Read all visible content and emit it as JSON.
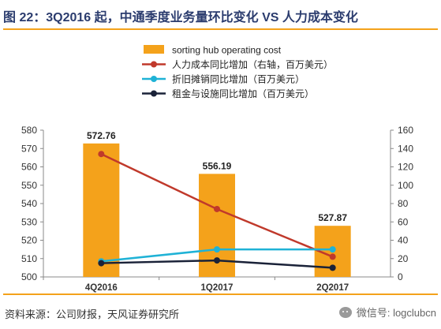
{
  "title": "图 22：3Q2016 起，中通季度业务量环比变化 VS 人力成本变化",
  "source": "资料来源：公司财报，天风证券研究所",
  "watermark": "微信号: logclubcn",
  "colors": {
    "bar": "#f4a21b",
    "labor": "#c0392b",
    "depreciation": "#1fb2d6",
    "rent": "#1a2238",
    "accent_rule": "#f4a21b",
    "title": "#2b3c6e"
  },
  "chart_data": {
    "type": "bar",
    "categories": [
      "4Q2016",
      "1Q2017",
      "2Q2017"
    ],
    "left_axis": {
      "min": 500,
      "max": 580,
      "step": 10
    },
    "right_axis": {
      "min": 0,
      "max": 160,
      "step": 20
    },
    "series": [
      {
        "name": "sorting hub operating cost",
        "kind": "bar",
        "axis": "left",
        "color": "#f4a21b",
        "values": [
          572.76,
          556.19,
          527.87
        ],
        "labels": [
          "572.76",
          "556.19",
          "527.87"
        ]
      },
      {
        "name": "人力成本同比增加（右轴，百万美元）",
        "kind": "line",
        "axis": "right",
        "color": "#c0392b",
        "values": [
          134,
          74,
          22
        ]
      },
      {
        "name": "折旧摊销同比增加（百万美元）",
        "kind": "line",
        "axis": "right",
        "color": "#1fb2d6",
        "values": [
          17,
          30,
          30
        ]
      },
      {
        "name": "租金与设施同比增加（百万美元）",
        "kind": "line",
        "axis": "right",
        "color": "#1a2238",
        "values": [
          15,
          18,
          10
        ]
      }
    ],
    "legend_position": "top-center",
    "grid": false
  }
}
